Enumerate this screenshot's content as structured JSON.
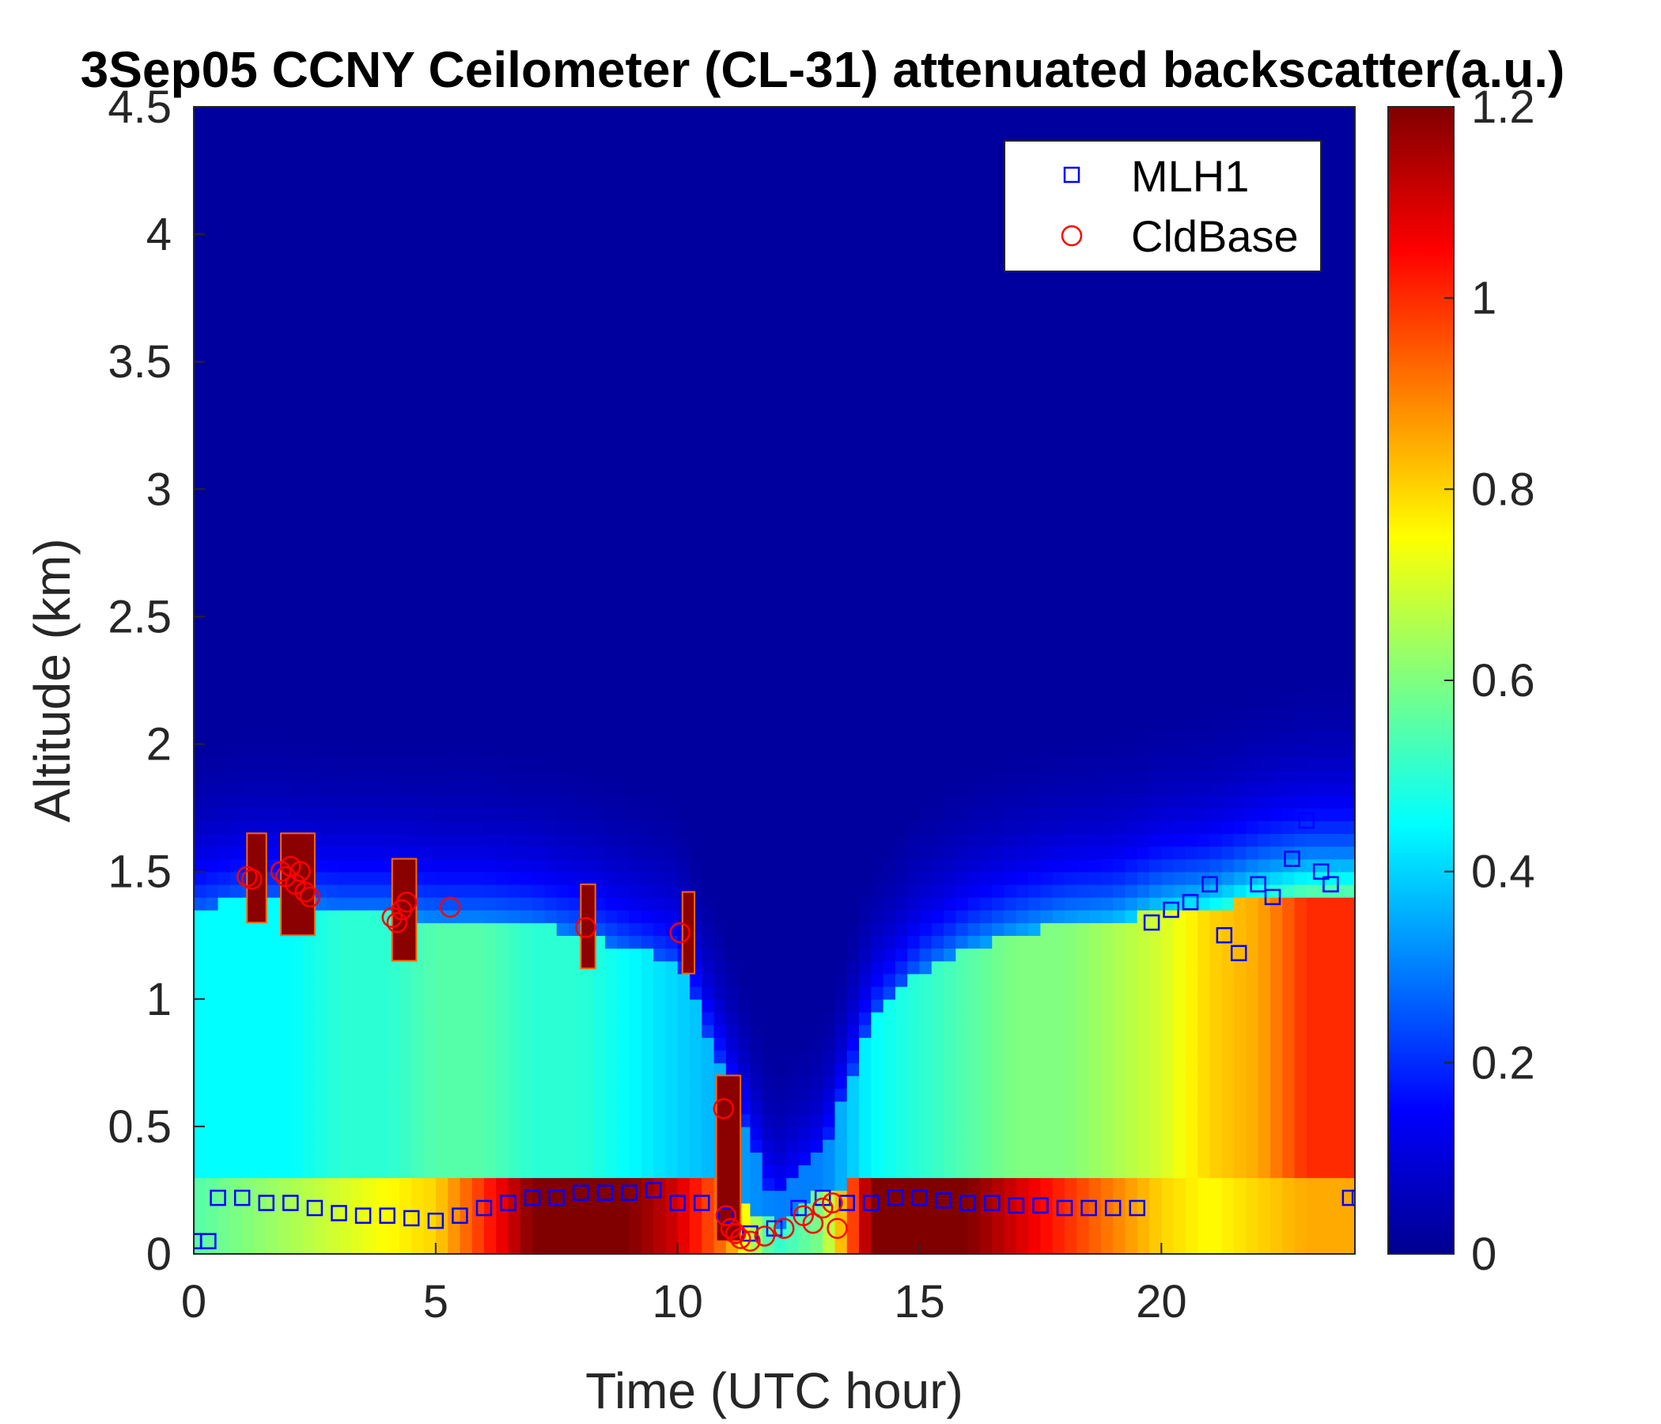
{
  "chart_data": {
    "type": "heatmap",
    "title": "3Sep05 CCNY Ceilometer (CL-31) attenuated backscatter(a.u.)",
    "xlabel": "Time (UTC hour)",
    "ylabel": "Altitude (km)",
    "xlim": [
      0,
      24
    ],
    "ylim": [
      0,
      4.5
    ],
    "xticks": [
      "0",
      "5",
      "10",
      "15",
      "20"
    ],
    "yticks": [
      "0",
      "0.5",
      "1",
      "1.5",
      "2",
      "2.5",
      "3",
      "3.5",
      "4",
      "4.5"
    ],
    "colorbar": {
      "colormap": "jet",
      "range": [
        0,
        1.2
      ],
      "ticks": [
        "0",
        "0.2",
        "0.4",
        "0.6",
        "0.8",
        "1",
        "1.2"
      ]
    },
    "legend": {
      "position": "top-right",
      "entries": [
        {
          "label": "MLH1",
          "marker": "square",
          "color": "#0000ff"
        },
        {
          "label": "CldBase",
          "marker": "circle",
          "color": "#ff0000"
        }
      ]
    },
    "backscatter_profile": [
      {
        "t": 0,
        "h_aerosol": 0.3,
        "v_ground": 0.55,
        "h_layer": 1.35,
        "v_layer": 0.45
      },
      {
        "t": 1,
        "h_aerosol": 0.3,
        "v_ground": 0.6,
        "h_layer": 1.4,
        "v_layer": 0.45
      },
      {
        "t": 2,
        "h_aerosol": 0.3,
        "v_ground": 0.65,
        "h_layer": 1.4,
        "v_layer": 0.45
      },
      {
        "t": 3,
        "h_aerosol": 0.3,
        "v_ground": 0.7,
        "h_layer": 1.35,
        "v_layer": 0.5
      },
      {
        "t": 4,
        "h_aerosol": 0.3,
        "v_ground": 0.75,
        "h_layer": 1.35,
        "v_layer": 0.5
      },
      {
        "t": 5,
        "h_aerosol": 0.3,
        "v_ground": 0.8,
        "h_layer": 1.3,
        "v_layer": 0.55
      },
      {
        "t": 6,
        "h_aerosol": 0.3,
        "v_ground": 1.0,
        "h_layer": 1.3,
        "v_layer": 0.55
      },
      {
        "t": 7,
        "h_aerosol": 0.3,
        "v_ground": 1.2,
        "h_layer": 1.3,
        "v_layer": 0.5
      },
      {
        "t": 8,
        "h_aerosol": 0.3,
        "v_ground": 1.2,
        "h_layer": 1.25,
        "v_layer": 0.5
      },
      {
        "t": 9,
        "h_aerosol": 0.3,
        "v_ground": 1.2,
        "h_layer": 1.2,
        "v_layer": 0.45
      },
      {
        "t": 10,
        "h_aerosol": 0.3,
        "v_ground": 1.1,
        "h_layer": 1.15,
        "v_layer": 0.4
      },
      {
        "t": 11,
        "h_aerosol": 0.3,
        "v_ground": 0.9,
        "h_layer": 0.7,
        "v_layer": 0.35
      },
      {
        "t": 12,
        "h_aerosol": 0.1,
        "v_ground": 0.5,
        "h_layer": 0.2,
        "v_layer": 0.3
      },
      {
        "t": 13,
        "h_aerosol": 0.25,
        "v_ground": 0.6,
        "h_layer": 0.4,
        "v_layer": 0.3
      },
      {
        "t": 14,
        "h_aerosol": 0.3,
        "v_ground": 1.2,
        "h_layer": 0.9,
        "v_layer": 0.45
      },
      {
        "t": 15,
        "h_aerosol": 0.3,
        "v_ground": 1.2,
        "h_layer": 1.1,
        "v_layer": 0.5
      },
      {
        "t": 16,
        "h_aerosol": 0.3,
        "v_ground": 1.2,
        "h_layer": 1.2,
        "v_layer": 0.55
      },
      {
        "t": 17,
        "h_aerosol": 0.3,
        "v_ground": 1.1,
        "h_layer": 1.25,
        "v_layer": 0.6
      },
      {
        "t": 18,
        "h_aerosol": 0.3,
        "v_ground": 1.0,
        "h_layer": 1.3,
        "v_layer": 0.6
      },
      {
        "t": 19,
        "h_aerosol": 0.3,
        "v_ground": 0.9,
        "h_layer": 1.3,
        "v_layer": 0.65
      },
      {
        "t": 20,
        "h_aerosol": 0.3,
        "v_ground": 0.8,
        "h_layer": 1.35,
        "v_layer": 0.7
      },
      {
        "t": 21,
        "h_aerosol": 0.3,
        "v_ground": 0.75,
        "h_layer": 1.35,
        "v_layer": 0.8
      },
      {
        "t": 22,
        "h_aerosol": 0.3,
        "v_ground": 0.8,
        "h_layer": 1.4,
        "v_layer": 0.85
      },
      {
        "t": 23,
        "h_aerosol": 0.3,
        "v_ground": 0.85,
        "h_layer": 1.4,
        "v_layer": 1.0
      },
      {
        "t": 24,
        "h_aerosol": 0.3,
        "v_ground": 0.85,
        "h_layer": 1.4,
        "v_layer": 1.0
      }
    ],
    "clouds": [
      {
        "t0": 1.1,
        "t1": 1.5,
        "h0": 1.3,
        "h1": 1.65
      },
      {
        "t0": 1.8,
        "t1": 2.5,
        "h0": 1.25,
        "h1": 1.65
      },
      {
        "t0": 4.1,
        "t1": 4.6,
        "h0": 1.15,
        "h1": 1.55
      },
      {
        "t0": 8.0,
        "t1": 8.3,
        "h0": 1.12,
        "h1": 1.45
      },
      {
        "t0": 10.1,
        "t1": 10.35,
        "h0": 1.1,
        "h1": 1.42
      },
      {
        "t0": 10.8,
        "t1": 11.3,
        "h0": 0.05,
        "h1": 0.7
      }
    ],
    "series": [
      {
        "name": "MLH1",
        "marker": "square",
        "x": [
          0,
          0.3,
          0.5,
          1,
          1.5,
          2,
          2.5,
          3,
          3.5,
          4,
          4.5,
          5,
          5.5,
          6,
          6.5,
          7,
          7.5,
          8,
          8.5,
          9,
          9.5,
          10,
          10.5,
          11,
          11.5,
          12,
          12.5,
          13,
          13.5,
          14,
          14.5,
          15,
          15.5,
          16,
          16.5,
          17,
          17.5,
          18,
          18.5,
          19,
          19.5,
          19.8,
          20.2,
          20.6,
          21,
          21.3,
          21.6,
          22,
          22.3,
          22.7,
          23,
          23.3,
          23.5,
          23.9,
          24.1
        ],
        "y": [
          0.05,
          0.05,
          0.22,
          0.22,
          0.2,
          0.2,
          0.18,
          0.16,
          0.15,
          0.15,
          0.14,
          0.13,
          0.15,
          0.18,
          0.2,
          0.22,
          0.22,
          0.24,
          0.24,
          0.24,
          0.25,
          0.2,
          0.2,
          0.15,
          0.08,
          0.1,
          0.18,
          0.22,
          0.2,
          0.2,
          0.22,
          0.22,
          0.21,
          0.2,
          0.2,
          0.19,
          0.19,
          0.18,
          0.18,
          0.18,
          0.18,
          1.3,
          1.35,
          1.38,
          1.45,
          1.25,
          1.18,
          1.45,
          1.4,
          1.55,
          1.7,
          1.5,
          1.45,
          0.22,
          0.22
        ]
      },
      {
        "name": "CldBase",
        "marker": "circle",
        "x": [
          1.1,
          1.2,
          1.8,
          1.9,
          2.0,
          2.1,
          2.2,
          2.3,
          2.4,
          4.1,
          4.2,
          4.3,
          4.4,
          5.3,
          8.1,
          10.05,
          10.95,
          11.0,
          11.1,
          11.2,
          11.3,
          11.5,
          11.8,
          12.2,
          12.6,
          12.8,
          13.0,
          13.2,
          13.3
        ],
        "y": [
          1.48,
          1.47,
          1.5,
          1.48,
          1.52,
          1.45,
          1.5,
          1.42,
          1.4,
          1.32,
          1.3,
          1.35,
          1.38,
          1.36,
          1.28,
          1.26,
          0.57,
          0.15,
          0.1,
          0.08,
          0.06,
          0.05,
          0.07,
          0.1,
          0.15,
          0.12,
          0.18,
          0.2,
          0.1
        ]
      }
    ]
  }
}
